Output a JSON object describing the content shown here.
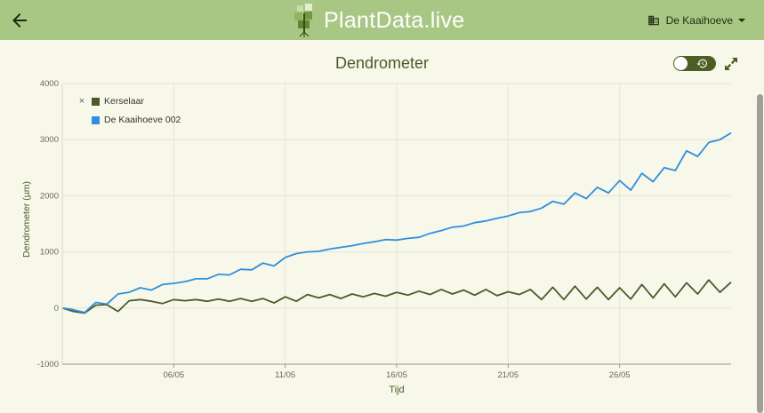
{
  "header": {
    "app_name": "PlantData.live",
    "site": "De Kaaihoeve",
    "back_icon": "arrow-left-icon",
    "colors": {
      "bar": "#a9c784",
      "text": "#ffffff"
    }
  },
  "panel": {
    "title": "Dendrometer",
    "history_toggle": {
      "on": true,
      "icon": "history-icon"
    },
    "expand_icon": "expand-icon"
  },
  "chart_data": {
    "type": "line",
    "title": "Dendrometer",
    "xlabel": "Tijd",
    "ylabel": "Dendrometer (µm)",
    "ylim": [
      -1000,
      4000
    ],
    "y_ticks": [
      "4000",
      "3000",
      "2000",
      "1000",
      "0",
      "-1000"
    ],
    "x_ticks": [
      "06/05",
      "11/05",
      "16/05",
      "21/05",
      "26/05"
    ],
    "x_range": [
      "2024-05-01",
      "2024-05-31"
    ],
    "grid": true,
    "legend_position": "top-left",
    "series": [
      {
        "name": "Kerselaar",
        "color": "#4b5a2a",
        "points": [
          [
            "2024-05-01",
            0
          ],
          [
            "2024-05-01T12",
            -60
          ],
          [
            "2024-05-02",
            -90
          ],
          [
            "2024-05-02T12",
            50
          ],
          [
            "2024-05-03",
            60
          ],
          [
            "2024-05-03T12",
            -60
          ],
          [
            "2024-05-04",
            130
          ],
          [
            "2024-05-04T12",
            150
          ],
          [
            "2024-05-05",
            120
          ],
          [
            "2024-05-05T12",
            80
          ],
          [
            "2024-05-06",
            150
          ],
          [
            "2024-05-06T12",
            130
          ],
          [
            "2024-05-07",
            150
          ],
          [
            "2024-05-07T12",
            120
          ],
          [
            "2024-05-08",
            160
          ],
          [
            "2024-05-08T12",
            120
          ],
          [
            "2024-05-09",
            170
          ],
          [
            "2024-05-09T12",
            120
          ],
          [
            "2024-05-10",
            170
          ],
          [
            "2024-05-10T12",
            90
          ],
          [
            "2024-05-11",
            200
          ],
          [
            "2024-05-11T12",
            120
          ],
          [
            "2024-05-12",
            240
          ],
          [
            "2024-05-12T12",
            180
          ],
          [
            "2024-05-13",
            240
          ],
          [
            "2024-05-13T12",
            170
          ],
          [
            "2024-05-14",
            250
          ],
          [
            "2024-05-14T12",
            200
          ],
          [
            "2024-05-15",
            260
          ],
          [
            "2024-05-15T12",
            210
          ],
          [
            "2024-05-16",
            280
          ],
          [
            "2024-05-16T12",
            230
          ],
          [
            "2024-05-17",
            300
          ],
          [
            "2024-05-17T12",
            240
          ],
          [
            "2024-05-18",
            330
          ],
          [
            "2024-05-18T12",
            250
          ],
          [
            "2024-05-19",
            320
          ],
          [
            "2024-05-19T12",
            230
          ],
          [
            "2024-05-20",
            330
          ],
          [
            "2024-05-20T12",
            220
          ],
          [
            "2024-05-21",
            290
          ],
          [
            "2024-05-21T12",
            240
          ],
          [
            "2024-05-22",
            330
          ],
          [
            "2024-05-22T12",
            150
          ],
          [
            "2024-05-23",
            370
          ],
          [
            "2024-05-23T12",
            150
          ],
          [
            "2024-05-24",
            390
          ],
          [
            "2024-05-24T12",
            160
          ],
          [
            "2024-05-25",
            370
          ],
          [
            "2024-05-25T12",
            150
          ],
          [
            "2024-05-26",
            360
          ],
          [
            "2024-05-26T12",
            160
          ],
          [
            "2024-05-27",
            420
          ],
          [
            "2024-05-27T12",
            180
          ],
          [
            "2024-05-28",
            430
          ],
          [
            "2024-05-28T12",
            200
          ],
          [
            "2024-05-29",
            450
          ],
          [
            "2024-05-29T12",
            250
          ],
          [
            "2024-05-30",
            500
          ],
          [
            "2024-05-30T12",
            280
          ],
          [
            "2024-05-31",
            460
          ]
        ]
      },
      {
        "name": "De Kaaihoeve 002",
        "color": "#2f8fdc",
        "points": [
          [
            "2024-05-01",
            0
          ],
          [
            "2024-05-01T12",
            -30
          ],
          [
            "2024-05-02",
            -80
          ],
          [
            "2024-05-02T12",
            100
          ],
          [
            "2024-05-03",
            70
          ],
          [
            "2024-05-03T12",
            250
          ],
          [
            "2024-05-04",
            280
          ],
          [
            "2024-05-04T12",
            360
          ],
          [
            "2024-05-05",
            320
          ],
          [
            "2024-05-05T12",
            420
          ],
          [
            "2024-05-06",
            440
          ],
          [
            "2024-05-06T12",
            470
          ],
          [
            "2024-05-07",
            520
          ],
          [
            "2024-05-07T12",
            520
          ],
          [
            "2024-05-08",
            600
          ],
          [
            "2024-05-08T12",
            590
          ],
          [
            "2024-05-09",
            690
          ],
          [
            "2024-05-09T12",
            680
          ],
          [
            "2024-05-10",
            800
          ],
          [
            "2024-05-10T12",
            750
          ],
          [
            "2024-05-11",
            900
          ],
          [
            "2024-05-11T12",
            970
          ],
          [
            "2024-05-12",
            1000
          ],
          [
            "2024-05-12T12",
            1010
          ],
          [
            "2024-05-13",
            1050
          ],
          [
            "2024-05-13T12",
            1080
          ],
          [
            "2024-05-14",
            1110
          ],
          [
            "2024-05-14T12",
            1150
          ],
          [
            "2024-05-15",
            1180
          ],
          [
            "2024-05-15T12",
            1220
          ],
          [
            "2024-05-16",
            1210
          ],
          [
            "2024-05-16T12",
            1240
          ],
          [
            "2024-05-17",
            1260
          ],
          [
            "2024-05-17T12",
            1330
          ],
          [
            "2024-05-18",
            1380
          ],
          [
            "2024-05-18T12",
            1440
          ],
          [
            "2024-05-19",
            1460
          ],
          [
            "2024-05-19T12",
            1520
          ],
          [
            "2024-05-20",
            1550
          ],
          [
            "2024-05-20T12",
            1600
          ],
          [
            "2024-05-21",
            1640
          ],
          [
            "2024-05-21T12",
            1700
          ],
          [
            "2024-05-22",
            1720
          ],
          [
            "2024-05-22T12",
            1780
          ],
          [
            "2024-05-23",
            1900
          ],
          [
            "2024-05-23T12",
            1850
          ],
          [
            "2024-05-24",
            2050
          ],
          [
            "2024-05-24T12",
            1950
          ],
          [
            "2024-05-25",
            2150
          ],
          [
            "2024-05-25T12",
            2050
          ],
          [
            "2024-05-26",
            2270
          ],
          [
            "2024-05-26T12",
            2100
          ],
          [
            "2024-05-27",
            2400
          ],
          [
            "2024-05-27T12",
            2250
          ],
          [
            "2024-05-28",
            2500
          ],
          [
            "2024-05-28T12",
            2450
          ],
          [
            "2024-05-29",
            2800
          ],
          [
            "2024-05-29T12",
            2700
          ],
          [
            "2024-05-30",
            2950
          ],
          [
            "2024-05-30T12",
            3000
          ],
          [
            "2024-05-31",
            3120
          ]
        ]
      }
    ]
  }
}
